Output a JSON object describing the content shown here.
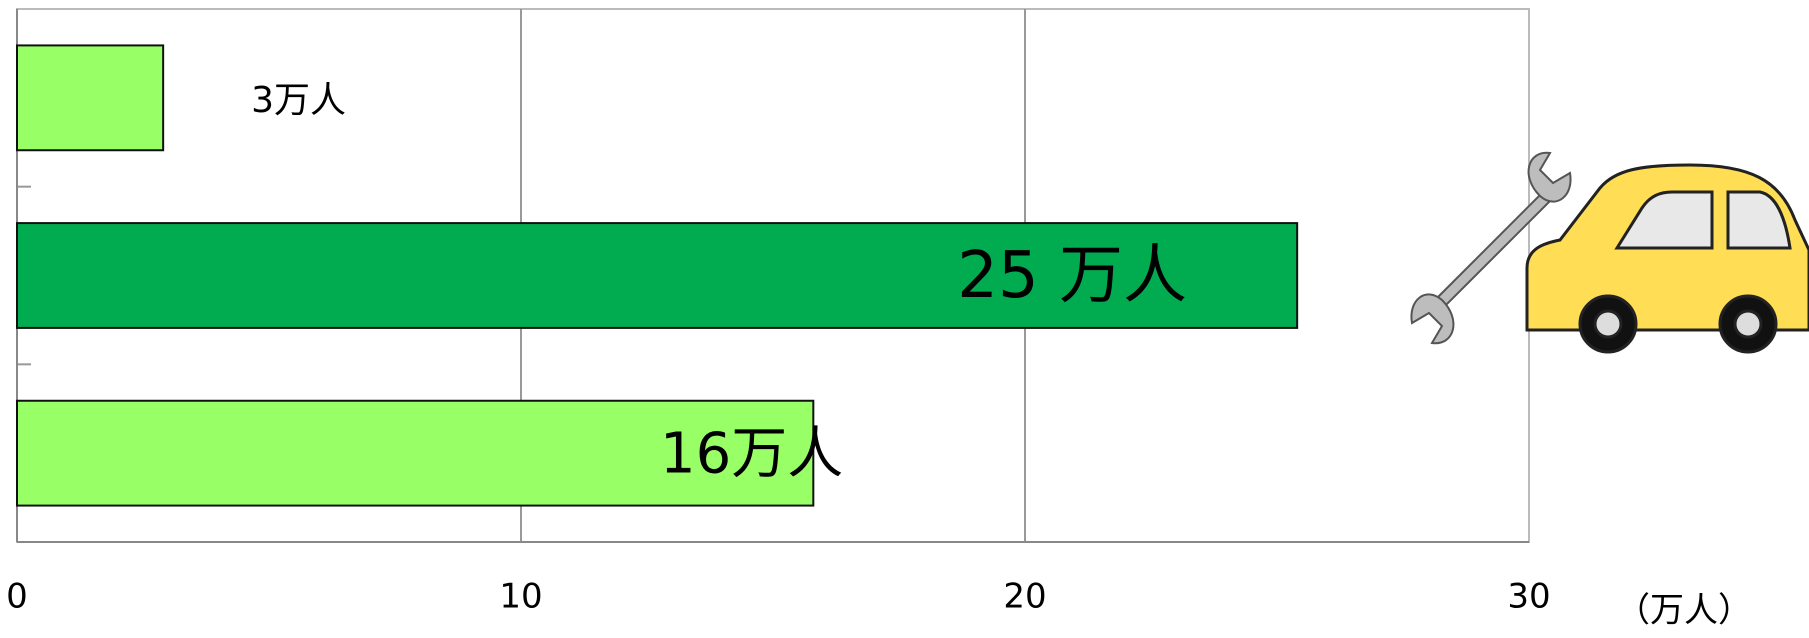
{
  "chart_data": {
    "type": "bar",
    "orientation": "horizontal",
    "categories": [
      null,
      null,
      null
    ],
    "values": [
      2.9,
      25.4,
      15.8
    ],
    "value_labels": [
      "3万人",
      "25 万人",
      "16万人"
    ],
    "colors": [
      "#99ff66",
      "#00ac4f",
      "#99ff66"
    ],
    "xlim": [
      0,
      30
    ],
    "xticks": [
      0,
      10,
      20,
      30
    ],
    "x_label": "（万人）",
    "grid": true
  }
}
